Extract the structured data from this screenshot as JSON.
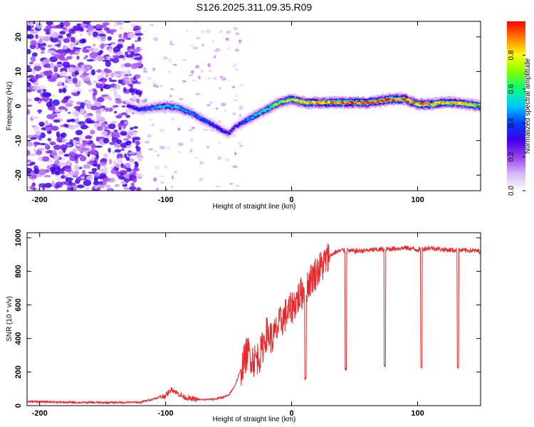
{
  "title": "S126.2025.311.09.35.R09",
  "chart_data": [
    {
      "type": "heatmap",
      "xlabel": "Height of straight line (km)",
      "ylabel": "Frequency (Hz)",
      "xlim": [
        -210,
        150
      ],
      "ylim": [
        -24.5,
        24.5
      ],
      "xticks": [
        -200,
        -100,
        0,
        100
      ],
      "yticks": [
        20,
        10,
        0,
        -10,
        -20
      ],
      "grid": false,
      "colorbar": {
        "label": "Normalized spectral amplitude",
        "range": [
          0,
          1
        ],
        "ticks": [
          "0.0",
          "0.2",
          "0.4",
          "0.6",
          "0.8"
        ],
        "colors": [
          "#ffffff",
          "#d8b8f8",
          "#9a3cf0",
          "#3b00e8",
          "#0040ff",
          "#00c8ff",
          "#00ff80",
          "#80ff00",
          "#ffff00",
          "#ff8000",
          "#ff0000"
        ]
      },
      "ridge": {
        "x": [
          -130,
          -120,
          -110,
          -100,
          -90,
          -80,
          -70,
          -60,
          -50,
          -45,
          -40,
          -30,
          -20,
          -10,
          0,
          10,
          20,
          40,
          60,
          80,
          90,
          100,
          110,
          120,
          130,
          140,
          150
        ],
        "freq": [
          0,
          -1,
          -0.5,
          0,
          -0.5,
          -2,
          -4,
          -6,
          -8,
          -6,
          -5,
          -3,
          -1,
          1,
          2,
          1,
          1,
          1,
          1,
          2,
          2,
          0.5,
          0.5,
          1,
          1,
          0.5,
          0
        ],
        "amp": [
          0.3,
          0.35,
          0.45,
          0.55,
          0.5,
          0.45,
          0.4,
          0.35,
          0.3,
          0.3,
          0.35,
          0.5,
          0.6,
          0.7,
          0.75,
          0.85,
          0.9,
          0.95,
          0.95,
          0.95,
          0.9,
          0.9,
          0.9,
          0.85,
          0.85,
          0.8,
          0.75
        ]
      }
    },
    {
      "type": "line",
      "xlabel": "Height of straight line (km)",
      "ylabel": "SNR (10 * v/v)",
      "xlim": [
        -210,
        150
      ],
      "ylim": [
        0,
        1030
      ],
      "xticks": [
        -200,
        -100,
        0,
        100
      ],
      "yticks": [
        0,
        200,
        400,
        600,
        800,
        1000
      ],
      "grid": false,
      "color": "#e8262a",
      "x": [
        -210,
        -180,
        -150,
        -120,
        -110,
        -100,
        -95,
        -90,
        -85,
        -80,
        -70,
        -60,
        -50,
        -45,
        -40,
        -35,
        -30,
        -25,
        -20,
        -15,
        -10,
        -5,
        0,
        5,
        10,
        15,
        20,
        25,
        30,
        35,
        40,
        50,
        60,
        70,
        80,
        90,
        100,
        110,
        120,
        130,
        140,
        150
      ],
      "snr": [
        25,
        20,
        18,
        20,
        40,
        60,
        100,
        70,
        50,
        40,
        35,
        40,
        60,
        120,
        220,
        320,
        270,
        300,
        430,
        400,
        480,
        540,
        580,
        640,
        690,
        750,
        800,
        840,
        890,
        915,
        925,
        920,
        925,
        930,
        935,
        940,
        930,
        940,
        930,
        925,
        925,
        920
      ],
      "dips": [
        {
          "x": 11,
          "snr": 150
        },
        {
          "x": 43,
          "snr": 210
        },
        {
          "x": 74,
          "snr": 225
        },
        {
          "x": 103,
          "snr": 220
        },
        {
          "x": 132,
          "snr": 220
        }
      ]
    }
  ]
}
